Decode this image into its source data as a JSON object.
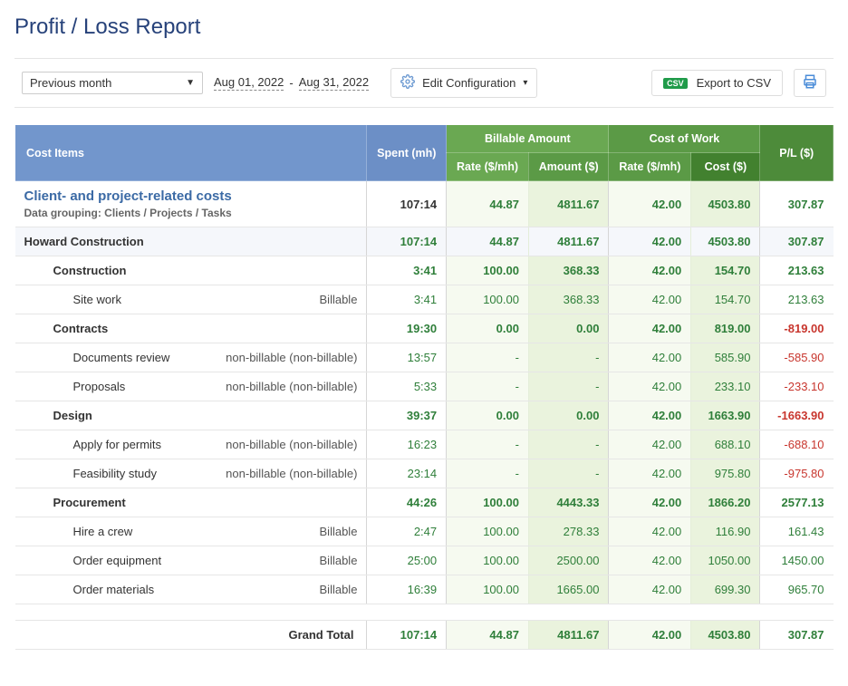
{
  "title": "Profit / Loss Report",
  "toolbar": {
    "range_preset": "Previous month",
    "date_from": "Aug 01, 2022",
    "date_sep": "-",
    "date_to": "Aug 31, 2022",
    "edit_config": "Edit Configuration",
    "export_csv": "Export to CSV",
    "csv_badge": "CSV"
  },
  "headers": {
    "cost_items": "Cost Items",
    "spent": "Spent (mh)",
    "billable_amount": "Billable Amount",
    "cost_of_work": "Cost of Work",
    "rate": "Rate ($/mh)",
    "amount": "Amount ($)",
    "cost": "Cost ($)",
    "pl": "P/L ($)"
  },
  "summary": {
    "title": "Client- and project-related costs",
    "sub": "Data grouping: Clients / Projects / Tasks",
    "spent": "107:14",
    "rate1": "44.87",
    "amt1": "4811.67",
    "rate2": "42.00",
    "cost2": "4503.80",
    "pl": "307.87"
  },
  "group": {
    "name": "Howard Construction",
    "spent": "107:14",
    "rate1": "44.87",
    "amt1": "4811.67",
    "rate2": "42.00",
    "cost2": "4503.80",
    "pl": "307.87"
  },
  "rows": [
    {
      "type": "sub",
      "label": "Construction",
      "spent": "3:41",
      "rate1": "100.00",
      "amt1": "368.33",
      "rate2": "42.00",
      "cost2": "154.70",
      "pl": "213.63"
    },
    {
      "type": "task",
      "label": "Site work",
      "bill": "Billable",
      "spent": "3:41",
      "rate1": "100.00",
      "amt1": "368.33",
      "rate2": "42.00",
      "cost2": "154.70",
      "pl": "213.63"
    },
    {
      "type": "sub",
      "label": "Contracts",
      "spent": "19:30",
      "rate1": "0.00",
      "amt1": "0.00",
      "rate2": "42.00",
      "cost2": "819.00",
      "pl": "-819.00",
      "pl_neg": true
    },
    {
      "type": "task",
      "label": "Documents review",
      "bill": "non-billable (non-billable)",
      "spent": "13:57",
      "rate1": "-",
      "amt1": "-",
      "rate2": "42.00",
      "cost2": "585.90",
      "pl": "-585.90",
      "pl_neg": true
    },
    {
      "type": "task",
      "label": "Proposals",
      "bill": "non-billable (non-billable)",
      "spent": "5:33",
      "rate1": "-",
      "amt1": "-",
      "rate2": "42.00",
      "cost2": "233.10",
      "pl": "-233.10",
      "pl_neg": true
    },
    {
      "type": "sub",
      "label": "Design",
      "spent": "39:37",
      "rate1": "0.00",
      "amt1": "0.00",
      "rate2": "42.00",
      "cost2": "1663.90",
      "pl": "-1663.90",
      "pl_neg": true
    },
    {
      "type": "task",
      "label": "Apply for permits",
      "bill": "non-billable (non-billable)",
      "spent": "16:23",
      "rate1": "-",
      "amt1": "-",
      "rate2": "42.00",
      "cost2": "688.10",
      "pl": "-688.10",
      "pl_neg": true
    },
    {
      "type": "task",
      "label": "Feasibility study",
      "bill": "non-billable (non-billable)",
      "spent": "23:14",
      "rate1": "-",
      "amt1": "-",
      "rate2": "42.00",
      "cost2": "975.80",
      "pl": "-975.80",
      "pl_neg": true
    },
    {
      "type": "sub",
      "label": "Procurement",
      "spent": "44:26",
      "rate1": "100.00",
      "amt1": "4443.33",
      "rate2": "42.00",
      "cost2": "1866.20",
      "pl": "2577.13"
    },
    {
      "type": "task",
      "label": "Hire a crew",
      "bill": "Billable",
      "spent": "2:47",
      "rate1": "100.00",
      "amt1": "278.33",
      "rate2": "42.00",
      "cost2": "116.90",
      "pl": "161.43"
    },
    {
      "type": "task",
      "label": "Order equipment",
      "bill": "Billable",
      "spent": "25:00",
      "rate1": "100.00",
      "amt1": "2500.00",
      "rate2": "42.00",
      "cost2": "1050.00",
      "pl": "1450.00"
    },
    {
      "type": "task",
      "label": "Order materials",
      "bill": "Billable",
      "spent": "16:39",
      "rate1": "100.00",
      "amt1": "1665.00",
      "rate2": "42.00",
      "cost2": "699.30",
      "pl": "965.70"
    }
  ],
  "grand": {
    "label": "Grand Total",
    "spent": "107:14",
    "rate1": "44.87",
    "amt1": "4811.67",
    "rate2": "42.00",
    "cost2": "4503.80",
    "pl": "307.87"
  }
}
